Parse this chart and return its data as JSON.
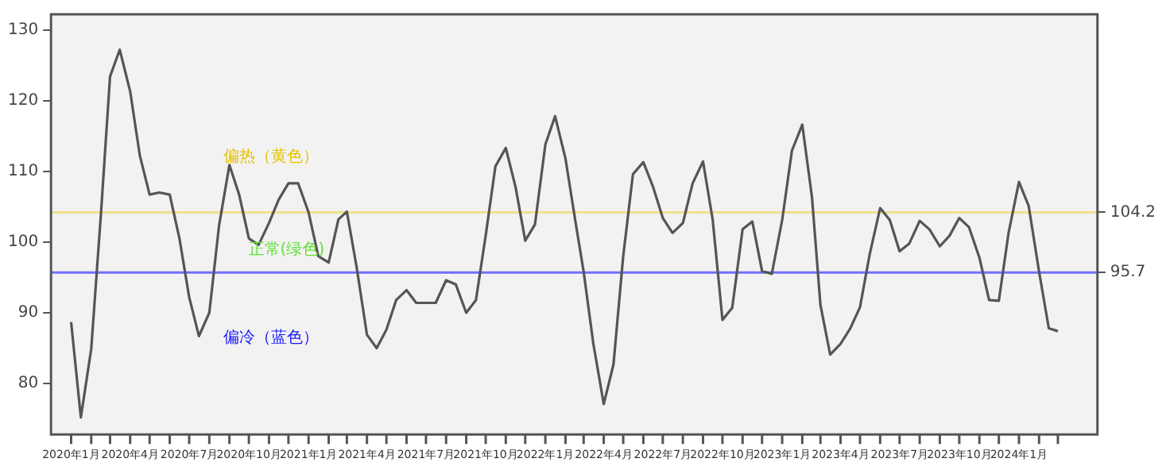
{
  "chart_data": {
    "type": "line",
    "x": [
      "2020-01-01",
      "2020-01-16",
      "2020-02-01",
      "2020-02-16",
      "2020-03-01",
      "2020-03-16",
      "2020-04-01",
      "2020-04-16",
      "2020-05-01",
      "2020-05-16",
      "2020-06-01",
      "2020-06-16",
      "2020-07-01",
      "2020-07-16",
      "2020-08-01",
      "2020-08-16",
      "2020-09-01",
      "2020-09-16",
      "2020-10-01",
      "2020-10-16",
      "2020-11-01",
      "2020-11-16",
      "2020-12-01",
      "2020-12-16",
      "2021-01-01",
      "2021-01-16",
      "2021-02-01",
      "2021-02-16",
      "2021-03-01",
      "2021-03-16",
      "2021-04-01",
      "2021-04-16",
      "2021-05-01",
      "2021-05-16",
      "2021-06-01",
      "2021-06-16",
      "2021-07-01",
      "2021-07-16",
      "2021-08-01",
      "2021-08-16",
      "2021-09-01",
      "2021-09-16",
      "2021-10-01",
      "2021-10-16",
      "2021-11-01",
      "2021-11-16",
      "2021-12-01",
      "2021-12-16",
      "2022-01-01",
      "2022-01-16",
      "2022-02-01",
      "2022-02-16",
      "2022-03-01",
      "2022-03-16",
      "2022-04-01",
      "2022-04-16",
      "2022-05-01",
      "2022-05-16",
      "2022-06-01",
      "2022-06-16",
      "2022-07-01",
      "2022-07-16",
      "2022-08-01",
      "2022-08-16",
      "2022-09-01",
      "2022-09-16",
      "2022-10-01",
      "2022-10-16",
      "2022-11-01",
      "2022-11-16",
      "2022-12-01",
      "2022-12-16",
      "2023-01-01",
      "2023-01-16",
      "2023-02-01",
      "2023-02-16",
      "2023-03-01",
      "2023-03-16",
      "2023-04-01",
      "2023-04-16",
      "2023-05-01",
      "2023-05-16",
      "2023-06-01",
      "2023-06-16",
      "2023-07-01",
      "2023-07-16",
      "2023-08-01",
      "2023-08-16",
      "2023-09-01",
      "2023-09-16",
      "2023-10-01",
      "2023-10-16",
      "2023-11-01",
      "2023-11-16",
      "2023-12-01",
      "2023-12-16",
      "2024-01-01",
      "2024-01-16",
      "2024-02-01",
      "2024-02-16",
      "2024-03-01"
    ],
    "series": [
      {
        "color": "#555555",
        "values": [
          88.7,
          75.2,
          84.9,
          104,
          123.4,
          127.2,
          121.3,
          112.2,
          106.7,
          107,
          106.7,
          100.5,
          92.2,
          86.7,
          90,
          102.3,
          110.9,
          106.7,
          100.5,
          99.6,
          102.7,
          106,
          108.3,
          108.3,
          104.2,
          98,
          97.1,
          103.2,
          104.3,
          96.5,
          86.9,
          85,
          87.6,
          91.8,
          93.2,
          91.4,
          91.4,
          91.4,
          94.6,
          94,
          90,
          91.8,
          100.9,
          110.7,
          113.3,
          107.8,
          100.2,
          102.5,
          113.8,
          117.8,
          111.8,
          103.1,
          95.8,
          85.6,
          77.1,
          82.7,
          98,
          109.6,
          111.3,
          107.8,
          103.4,
          101.3,
          102.7,
          108.3,
          111.4,
          103.1,
          89,
          90.7,
          101.8,
          102.9,
          95.9,
          95.5,
          103.1,
          112.9,
          116.6,
          106.3,
          91.1,
          84.1,
          85.6,
          87.8,
          90.8,
          98.3,
          104.8,
          103.1,
          98.7,
          99.8,
          103,
          101.8,
          99.4,
          100.9,
          103.4,
          102.1,
          97.8,
          91.8,
          91.7,
          101.3,
          108.5,
          105.1,
          95.8,
          87.8,
          87.4
        ]
      }
    ],
    "xlim": [
      "2019-12-01",
      "2024-05-01"
    ],
    "xticks": [
      {
        "value": "2020-01-01",
        "label": "2020年1月"
      },
      {
        "value": "2020-02-01",
        "label": null
      },
      {
        "value": "2020-03-01",
        "label": null
      },
      {
        "value": "2020-04-01",
        "label": "2020年4月"
      },
      {
        "value": "2020-05-01",
        "label": null
      },
      {
        "value": "2020-06-01",
        "label": null
      },
      {
        "value": "2020-07-01",
        "label": "2020年7月"
      },
      {
        "value": "2020-08-01",
        "label": null
      },
      {
        "value": "2020-09-01",
        "label": null
      },
      {
        "value": "2020-10-01",
        "label": "2020年10月"
      },
      {
        "value": "2020-11-01",
        "label": null
      },
      {
        "value": "2020-12-01",
        "label": null
      },
      {
        "value": "2021-01-01",
        "label": "2021年1月"
      },
      {
        "value": "2021-02-01",
        "label": null
      },
      {
        "value": "2021-03-01",
        "label": null
      },
      {
        "value": "2021-04-01",
        "label": "2021年4月"
      },
      {
        "value": "2021-05-01",
        "label": null
      },
      {
        "value": "2021-06-01",
        "label": null
      },
      {
        "value": "2021-07-01",
        "label": "2021年7月"
      },
      {
        "value": "2021-08-01",
        "label": null
      },
      {
        "value": "2021-09-01",
        "label": null
      },
      {
        "value": "2021-10-01",
        "label": "2021年10月"
      },
      {
        "value": "2021-11-01",
        "label": null
      },
      {
        "value": "2021-12-01",
        "label": null
      },
      {
        "value": "2022-01-01",
        "label": "2022年1月"
      },
      {
        "value": "2022-02-01",
        "label": null
      },
      {
        "value": "2022-03-01",
        "label": null
      },
      {
        "value": "2022-04-01",
        "label": "2022年4月"
      },
      {
        "value": "2022-05-01",
        "label": null
      },
      {
        "value": "2022-06-01",
        "label": null
      },
      {
        "value": "2022-07-01",
        "label": "2022年7月"
      },
      {
        "value": "2022-08-01",
        "label": null
      },
      {
        "value": "2022-09-01",
        "label": null
      },
      {
        "value": "2022-10-01",
        "label": "2022年10月"
      },
      {
        "value": "2022-11-01",
        "label": null
      },
      {
        "value": "2022-12-01",
        "label": null
      },
      {
        "value": "2023-01-01",
        "label": "2023年1月"
      },
      {
        "value": "2023-02-01",
        "label": null
      },
      {
        "value": "2023-03-01",
        "label": null
      },
      {
        "value": "2023-04-01",
        "label": "2023年4月"
      },
      {
        "value": "2023-05-01",
        "label": null
      },
      {
        "value": "2023-06-01",
        "label": null
      },
      {
        "value": "2023-07-01",
        "label": "2023年7月"
      },
      {
        "value": "2023-08-01",
        "label": null
      },
      {
        "value": "2023-09-01",
        "label": null
      },
      {
        "value": "2023-10-01",
        "label": "2023年10月"
      },
      {
        "value": "2023-11-01",
        "label": null
      },
      {
        "value": "2023-12-01",
        "label": null
      },
      {
        "value": "2024-01-01",
        "label": "2024年1月"
      },
      {
        "value": "2024-02-01",
        "label": null
      },
      {
        "value": "2024-03-01",
        "label": null
      }
    ],
    "ylim": [
      72.8,
      132.2
    ],
    "yticks": [
      80,
      90,
      100,
      110,
      120,
      130
    ],
    "y2lim": [
      72.8,
      132.2
    ],
    "y2ticks": [
      95.7,
      104.2
    ],
    "ref_lines": [
      {
        "axis": "y",
        "value": 104.2,
        "color": "#f0e08c"
      },
      {
        "axis": "y",
        "value": 95.7,
        "color": "#7070ff"
      }
    ],
    "annotations": [
      "偏热（黄色）",
      "正常(绿色)",
      "偏冷（蓝色）"
    ],
    "grid": false,
    "legend": false,
    "marker": "none",
    "line_style": "solid"
  }
}
